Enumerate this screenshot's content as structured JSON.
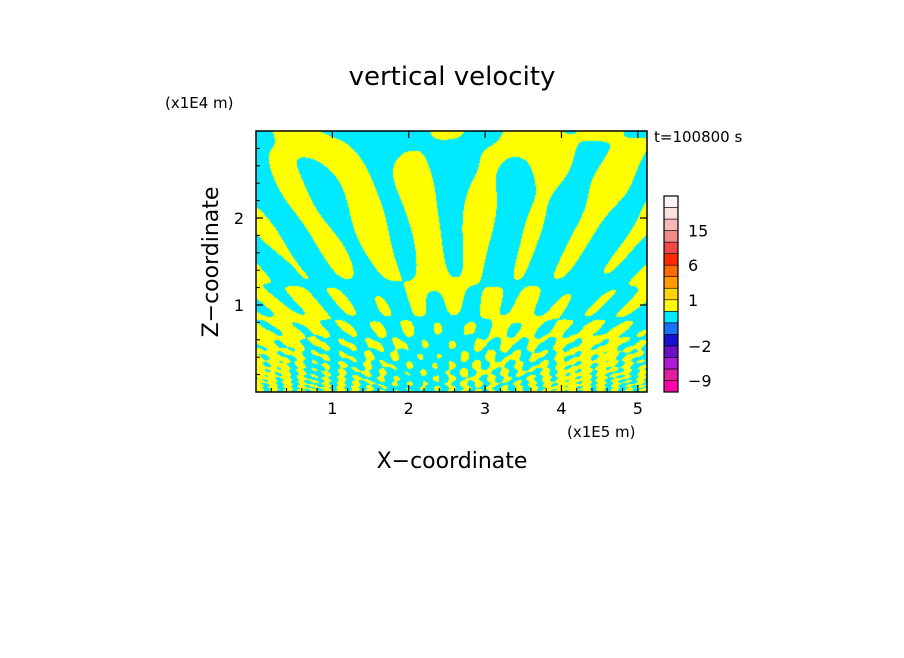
{
  "chart_data": {
    "type": "heatmap",
    "title": "vertical velocity",
    "xlabel": "X−coordinate",
    "ylabel": "Z−coordinate",
    "x_unit_label": "(x1E5 m)",
    "y_unit_label": "(x1E4 m)",
    "time_label": "t=100800 s",
    "xlim": [
      0.0,
      5.12
    ],
    "ylim": [
      0.0,
      3.0
    ],
    "x_ticks": [
      1,
      2,
      3,
      4,
      5
    ],
    "y_ticks": [
      1,
      2
    ],
    "colorbar": {
      "levels": [
        "-12",
        "-9",
        "-6",
        "-4",
        "-2",
        "-1",
        "-0.5",
        "0.5",
        "1",
        "2",
        "4",
        "6",
        "9",
        "12",
        "15",
        "18",
        "21"
      ],
      "colors": [
        "#ff00aa",
        "#e01ea0",
        "#b01ad8",
        "#6a12c8",
        "#1810d0",
        "#1870ff",
        "#00eaff",
        "#ffff00",
        "#ffd400",
        "#ff9a00",
        "#ff6a00",
        "#ff2a00",
        "#f04848",
        "#f08a8a",
        "#f8b8b8",
        "#fbe0e0",
        "#fff4f4"
      ],
      "tick_labels": [
        {
          "label": "15",
          "value": 15
        },
        {
          "label": "6",
          "value": 6
        },
        {
          "label": "1",
          "value": 1
        },
        {
          "label": "−2",
          "value": -2
        },
        {
          "label": "−9",
          "value": -9
        }
      ]
    },
    "dominant_values": [
      {
        "range": "-1 to 0",
        "color": "#00eaff"
      },
      {
        "range": "0 to 1",
        "color": "#ffff00"
      }
    ],
    "grid": false
  }
}
